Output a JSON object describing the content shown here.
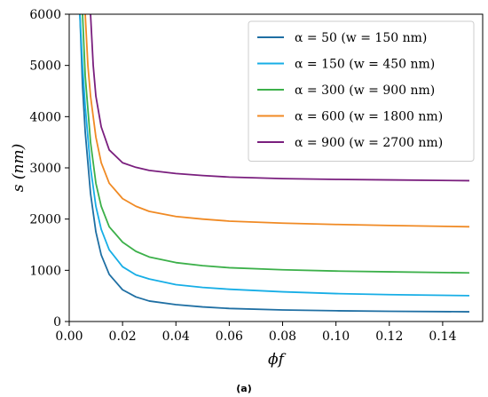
{
  "chart_data": {
    "type": "line",
    "xlabel": "ϕf",
    "ylabel": "s (nm)",
    "caption": "(a)",
    "xlim": [
      0.0,
      0.155
    ],
    "ylim": [
      0,
      6000
    ],
    "xticks": [
      "0.00",
      "0.02",
      "0.04",
      "0.06",
      "0.08",
      "0.10",
      "0.12",
      "0.14"
    ],
    "yticks": [
      "0",
      "1000",
      "2000",
      "3000",
      "4000",
      "5000",
      "6000"
    ],
    "grid": false,
    "legend_position": "top-right",
    "series": [
      {
        "name": "α = 50 (w = 150 nm)",
        "color": "#1f6fa3",
        "x": [
          0.004,
          0.005,
          0.006,
          0.008,
          0.01,
          0.012,
          0.015,
          0.02,
          0.025,
          0.03,
          0.04,
          0.05,
          0.06,
          0.08,
          0.1,
          0.12,
          0.15
        ],
        "y": [
          6000,
          4600,
          3700,
          2500,
          1750,
          1300,
          920,
          620,
          480,
          400,
          330,
          285,
          255,
          225,
          210,
          200,
          190
        ]
      },
      {
        "name": "α = 150 (w = 450 nm)",
        "color": "#17aee6",
        "x": [
          0.004,
          0.005,
          0.006,
          0.008,
          0.01,
          0.012,
          0.015,
          0.02,
          0.025,
          0.03,
          0.04,
          0.05,
          0.06,
          0.08,
          0.1,
          0.12,
          0.15
        ],
        "y": [
          6000,
          5000,
          4200,
          3000,
          2250,
          1800,
          1400,
          1070,
          910,
          830,
          720,
          665,
          630,
          580,
          545,
          525,
          505
        ]
      },
      {
        "name": "α = 300 (w = 900 nm)",
        "color": "#3cb04a",
        "x": [
          0.005,
          0.006,
          0.008,
          0.01,
          0.012,
          0.015,
          0.02,
          0.025,
          0.03,
          0.04,
          0.05,
          0.06,
          0.08,
          0.1,
          0.12,
          0.15
        ],
        "y": [
          6000,
          4800,
          3500,
          2700,
          2250,
          1850,
          1550,
          1370,
          1260,
          1150,
          1090,
          1050,
          1010,
          985,
          970,
          950
        ]
      },
      {
        "name": "α = 600 (w = 1800 nm)",
        "color": "#f08a24",
        "x": [
          0.006,
          0.007,
          0.008,
          0.01,
          0.012,
          0.015,
          0.02,
          0.025,
          0.03,
          0.04,
          0.05,
          0.06,
          0.08,
          0.1,
          0.12,
          0.15
        ],
        "y": [
          6000,
          5000,
          4400,
          3600,
          3100,
          2700,
          2400,
          2250,
          2150,
          2050,
          2000,
          1960,
          1920,
          1895,
          1875,
          1850
        ]
      },
      {
        "name": "α = 900 (w = 2700 nm)",
        "color": "#7a1f7e",
        "x": [
          0.008,
          0.009,
          0.01,
          0.012,
          0.015,
          0.02,
          0.025,
          0.03,
          0.04,
          0.05,
          0.06,
          0.08,
          0.1,
          0.12,
          0.15
        ],
        "y": [
          6000,
          5000,
          4400,
          3800,
          3350,
          3100,
          3010,
          2950,
          2890,
          2850,
          2820,
          2790,
          2775,
          2765,
          2750
        ]
      }
    ]
  }
}
